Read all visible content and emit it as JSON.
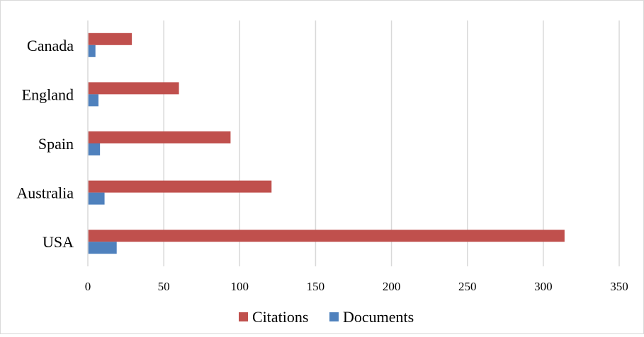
{
  "chart_data": {
    "type": "bar",
    "orientation": "horizontal",
    "categories": [
      "Canada",
      "England",
      "Spain",
      "Australia",
      "USA"
    ],
    "series": [
      {
        "name": "Citations",
        "values": [
          29,
          60,
          94,
          121,
          314
        ],
        "color": "#C0504D"
      },
      {
        "name": "Documents",
        "values": [
          5,
          7,
          8,
          11,
          19
        ],
        "color": "#4F81BD"
      }
    ],
    "xlim": [
      0,
      350
    ],
    "xticks": [
      0,
      50,
      100,
      150,
      200,
      250,
      300,
      350
    ],
    "xlabel": "",
    "ylabel": "",
    "grid": true,
    "legend_position": "bottom"
  }
}
